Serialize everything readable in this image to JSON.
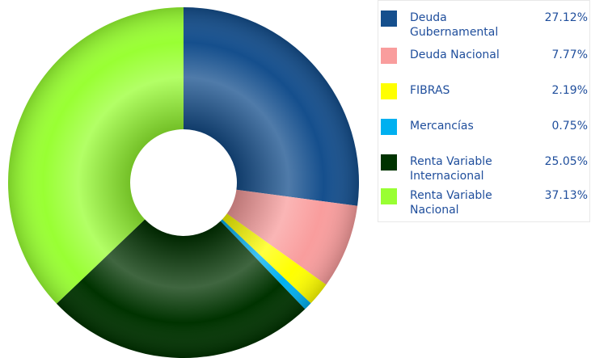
{
  "chart_data": {
    "type": "donut",
    "categories": [
      "Deuda Gubernamental",
      "Deuda Nacional",
      "FIBRAS",
      "Mercancías",
      "Renta Variable Internacional",
      "Renta Variable Nacional"
    ],
    "values": [
      27.12,
      7.77,
      2.19,
      0.75,
      25.05,
      37.13
    ],
    "value_labels": [
      "27.12%",
      "7.77%",
      "2.19%",
      "0.75%",
      "25.05%",
      "37.13%"
    ],
    "colors": [
      "#154f8d",
      "#f99d9d",
      "#ffff00",
      "#00b0f0",
      "#003300",
      "#99ff33"
    ]
  }
}
